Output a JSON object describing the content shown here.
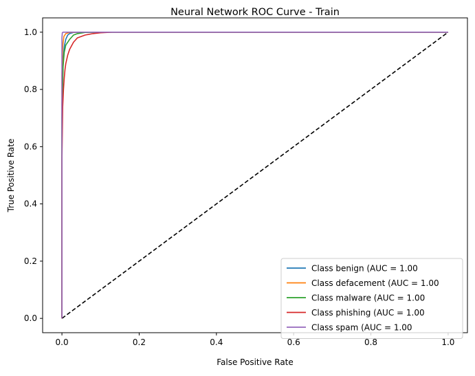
{
  "chart_data": {
    "type": "line",
    "title": "Neural Network ROC Curve - Train",
    "xlabel": "False Positive Rate",
    "ylabel": "True Positive Rate",
    "xlim": [
      -0.05,
      1.05
    ],
    "ylim": [
      -0.05,
      1.05
    ],
    "xticks": [
      "0.0",
      "0.2",
      "0.4",
      "0.6",
      "0.8",
      "1.0"
    ],
    "yticks": [
      "0.0",
      "0.2",
      "0.4",
      "0.6",
      "0.8",
      "1.0"
    ],
    "grid": false,
    "legend_position": "bottom-right",
    "series": [
      {
        "name": "Class benign (AUC = 1.00",
        "color": "#1f77b4",
        "x": [
          0,
          0.0,
          0.003,
          0.006,
          0.01,
          0.015,
          0.02,
          0.03,
          0.05,
          0.1,
          1.0
        ],
        "y": [
          0,
          0.75,
          0.9,
          0.95,
          0.975,
          0.99,
          0.995,
          0.999,
          1.0,
          1.0,
          1.0
        ]
      },
      {
        "name": "Class defacement (AUC = 1.00",
        "color": "#ff7f0e",
        "x": [
          0,
          0.0,
          0.002,
          0.005,
          0.01,
          0.02,
          0.04,
          0.1,
          1.0
        ],
        "y": [
          0,
          0.85,
          0.95,
          0.985,
          0.995,
          0.999,
          1.0,
          1.0,
          1.0
        ]
      },
      {
        "name": "Class malware (AUC = 1.00",
        "color": "#2ca02c",
        "x": [
          0,
          0.0,
          0.003,
          0.006,
          0.01,
          0.015,
          0.02,
          0.03,
          0.04,
          0.06,
          0.1,
          1.0
        ],
        "y": [
          0,
          0.7,
          0.88,
          0.93,
          0.955,
          0.965,
          0.975,
          0.99,
          0.995,
          0.999,
          1.0,
          1.0
        ]
      },
      {
        "name": "Class phishing (AUC = 1.00",
        "color": "#d62728",
        "x": [
          0,
          0.0,
          0.002,
          0.004,
          0.006,
          0.008,
          0.01,
          0.015,
          0.02,
          0.03,
          0.04,
          0.06,
          0.08,
          0.1,
          0.13,
          1.0
        ],
        "y": [
          0,
          0.55,
          0.74,
          0.8,
          0.84,
          0.87,
          0.89,
          0.92,
          0.94,
          0.965,
          0.98,
          0.99,
          0.995,
          0.998,
          1.0,
          1.0
        ]
      },
      {
        "name": "Class spam (AUC = 1.00",
        "color": "#9467bd",
        "x": [
          0,
          0.0,
          0.001,
          0.003,
          1.0
        ],
        "y": [
          0,
          0.98,
          0.998,
          1.0,
          1.0
        ]
      }
    ],
    "reference_line": {
      "color": "#000000",
      "style": "dashed",
      "x": [
        0,
        1
      ],
      "y": [
        0,
        1
      ]
    }
  }
}
